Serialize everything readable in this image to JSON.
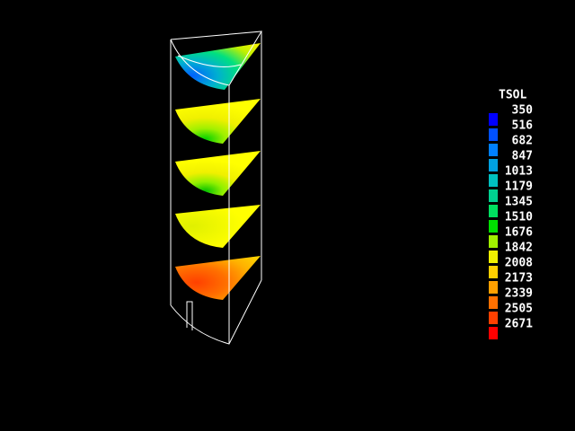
{
  "legend": {
    "title": "TSOL",
    "levels": [
      {
        "label": "350",
        "color": "#0000ff"
      },
      {
        "label": "516",
        "color": "#0050ff"
      },
      {
        "label": "682",
        "color": "#0080ff"
      },
      {
        "label": "847",
        "color": "#00a0e0"
      },
      {
        "label": "1013",
        "color": "#00c0c0"
      },
      {
        "label": "1179",
        "color": "#00d090"
      },
      {
        "label": "1345",
        "color": "#00e060"
      },
      {
        "label": "1510",
        "color": "#00e000"
      },
      {
        "label": "1676",
        "color": "#a0f000"
      },
      {
        "label": "1842",
        "color": "#f0f000"
      },
      {
        "label": "2008",
        "color": "#ffd000"
      },
      {
        "label": "2173",
        "color": "#ffa000"
      },
      {
        "label": "2339",
        "color": "#ff7000"
      },
      {
        "label": "2505",
        "color": "#ff4000"
      },
      {
        "label": "2671",
        "color": "#ff0000"
      }
    ]
  }
}
